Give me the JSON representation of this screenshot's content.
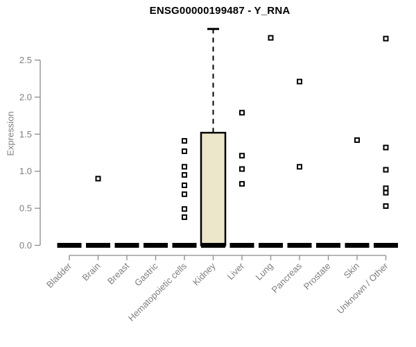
{
  "chart_data": {
    "type": "box",
    "title": "ENSG00000199487 - Y_RNA",
    "xlabel": "",
    "ylabel": "Expression",
    "ylim": [
      0,
      2.95
    ],
    "yticks": [
      0,
      0.5,
      1.0,
      1.5,
      2.0,
      2.5
    ],
    "ytick_labels": [
      "0.0",
      "0.5",
      "1.0",
      "1.5",
      "2.0",
      "2.5"
    ],
    "grid": false,
    "legend": "none",
    "categories": [
      "Bladder",
      "Brain",
      "Breast",
      "Gastric",
      "Hematopoietic cells",
      "Kidney",
      "Liver",
      "Lung",
      "Pancreas",
      "Prostate",
      "Skin",
      "Unknown / Other"
    ],
    "boxes": [
      {
        "category": "Bladder",
        "whisker_low": 0,
        "q1": 0,
        "median": 0,
        "q3": 0,
        "whisker_high": 0,
        "outliers": []
      },
      {
        "category": "Brain",
        "whisker_low": 0,
        "q1": 0,
        "median": 0,
        "q3": 0,
        "whisker_high": 0,
        "outliers": [
          0.9
        ]
      },
      {
        "category": "Breast",
        "whisker_low": 0,
        "q1": 0,
        "median": 0,
        "q3": 0,
        "whisker_high": 0,
        "outliers": []
      },
      {
        "category": "Gastric",
        "whisker_low": 0,
        "q1": 0,
        "median": 0,
        "q3": 0,
        "whisker_high": 0,
        "outliers": []
      },
      {
        "category": "Hematopoietic cells",
        "whisker_low": 0,
        "q1": 0,
        "median": 0,
        "q3": 0,
        "whisker_high": 0,
        "outliers": [
          1.41,
          1.27,
          1.06,
          0.95,
          0.81,
          0.69,
          0.49,
          0.38
        ]
      },
      {
        "category": "Kidney",
        "whisker_low": 0,
        "q1": 0,
        "median": 0,
        "q3": 1.52,
        "whisker_high": 2.92,
        "outliers": []
      },
      {
        "category": "Liver",
        "whisker_low": 0,
        "q1": 0,
        "median": 0,
        "q3": 0,
        "whisker_high": 0,
        "outliers": [
          1.79,
          1.21,
          1.03,
          0.83
        ]
      },
      {
        "category": "Lung",
        "whisker_low": 0,
        "q1": 0,
        "median": 0,
        "q3": 0,
        "whisker_high": 0,
        "outliers": [
          2.8
        ]
      },
      {
        "category": "Pancreas",
        "whisker_low": 0,
        "q1": 0,
        "median": 0,
        "q3": 0,
        "whisker_high": 0,
        "outliers": [
          2.21,
          1.06
        ]
      },
      {
        "category": "Prostate",
        "whisker_low": 0,
        "q1": 0,
        "median": 0,
        "q3": 0,
        "whisker_high": 0,
        "outliers": []
      },
      {
        "category": "Skin",
        "whisker_low": 0,
        "q1": 0,
        "median": 0,
        "q3": 0,
        "whisker_high": 0,
        "outliers": [
          1.42
        ]
      },
      {
        "category": "Unknown / Other",
        "whisker_low": 0,
        "q1": 0,
        "median": 0,
        "q3": 0,
        "whisker_high": 0,
        "outliers": [
          2.79,
          1.32,
          1.02,
          0.77,
          0.71,
          0.53
        ]
      }
    ],
    "colors": {
      "box_fill": "#ECE6CA",
      "box_stroke": "#000000",
      "median": "#000000",
      "outlier_stroke": "#000000",
      "outlier_fill": "#ffffff",
      "axis_line": "#8a8a8a",
      "tick_label": "#7e7e7e",
      "title": "#000000"
    }
  }
}
